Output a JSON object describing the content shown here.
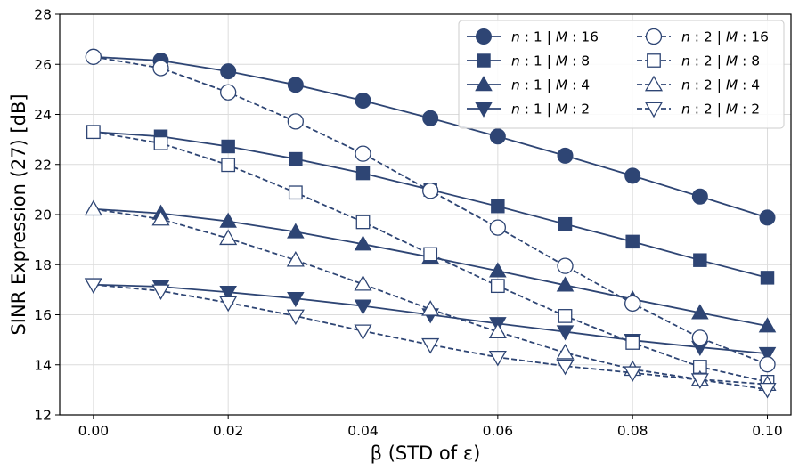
{
  "chart_data": {
    "type": "line",
    "title": "",
    "xlabel": "β (STD of ε)",
    "ylabel": "SINR Expression (27)  [dB]",
    "xlim": [
      -0.005,
      0.1035
    ],
    "ylim": [
      12,
      28
    ],
    "grid": true,
    "legend_position": "top-right",
    "color": "#2e4574",
    "x": [
      0.0,
      0.01,
      0.02,
      0.03,
      0.04,
      0.05,
      0.06,
      0.07,
      0.08,
      0.09,
      0.1
    ],
    "x_tick_labels": [
      "0.00",
      "0.02",
      "0.04",
      "0.06",
      "0.08",
      "0.10"
    ],
    "y_tick_labels": [
      "12",
      "14",
      "16",
      "18",
      "20",
      "22",
      "24",
      "26",
      "28"
    ],
    "series": [
      {
        "name": "n:1 | M:16",
        "label_parts": [
          "n",
          " : 1 | ",
          "M",
          " : 16"
        ],
        "marker": "circle",
        "filled": true,
        "dashed": false,
        "values": [
          26.3,
          26.15,
          25.72,
          25.18,
          24.55,
          23.85,
          23.12,
          22.35,
          21.55,
          20.72,
          19.88
        ]
      },
      {
        "name": "n:1 | M:8",
        "label_parts": [
          "n",
          " : 1 | ",
          "M",
          " : 8"
        ],
        "marker": "square",
        "filled": true,
        "dashed": false,
        "values": [
          23.3,
          23.12,
          22.72,
          22.22,
          21.65,
          20.99,
          20.33,
          19.62,
          18.92,
          18.18,
          17.48
        ]
      },
      {
        "name": "n:1 | M:4",
        "label_parts": [
          "n",
          " : 1 | ",
          "M",
          " : 4"
        ],
        "marker": "triangle-up",
        "filled": true,
        "dashed": false,
        "values": [
          20.22,
          20.05,
          19.73,
          19.31,
          18.82,
          18.3,
          17.75,
          17.18,
          16.62,
          16.08,
          15.55
        ]
      },
      {
        "name": "n:1 | M:2",
        "label_parts": [
          "n",
          " : 1 | ",
          "M",
          " : 2"
        ],
        "marker": "triangle-down",
        "filled": true,
        "dashed": false,
        "values": [
          17.2,
          17.12,
          16.9,
          16.65,
          16.35,
          16.0,
          15.65,
          15.32,
          14.98,
          14.7,
          14.45
        ]
      },
      {
        "name": "n:2 | M:16",
        "label_parts": [
          "n",
          " : 2 | ",
          "M",
          " : 16"
        ],
        "marker": "circle",
        "filled": false,
        "dashed": true,
        "values": [
          26.3,
          25.85,
          24.88,
          23.72,
          22.43,
          20.95,
          19.48,
          17.95,
          16.45,
          15.08,
          14.02
        ]
      },
      {
        "name": "n:2 | M:8",
        "label_parts": [
          "n",
          " : 2 | ",
          "M",
          " : 8"
        ],
        "marker": "square",
        "filled": false,
        "dashed": true,
        "values": [
          23.3,
          22.85,
          21.98,
          20.88,
          19.7,
          18.42,
          17.15,
          15.95,
          14.88,
          13.92,
          13.32
        ]
      },
      {
        "name": "n:2 | M:4",
        "label_parts": [
          "n",
          " : 2 | ",
          "M",
          " : 4"
        ],
        "marker": "triangle-up",
        "filled": false,
        "dashed": true,
        "values": [
          20.22,
          19.82,
          19.05,
          18.18,
          17.22,
          16.22,
          15.32,
          14.48,
          13.82,
          13.42,
          13.22
        ]
      },
      {
        "name": "n:2 | M:2",
        "label_parts": [
          "n",
          " : 2 | ",
          "M",
          " : 2"
        ],
        "marker": "triangle-down",
        "filled": false,
        "dashed": true,
        "values": [
          17.2,
          16.95,
          16.48,
          15.95,
          15.35,
          14.8,
          14.3,
          13.95,
          13.68,
          13.4,
          13.02
        ]
      }
    ]
  }
}
